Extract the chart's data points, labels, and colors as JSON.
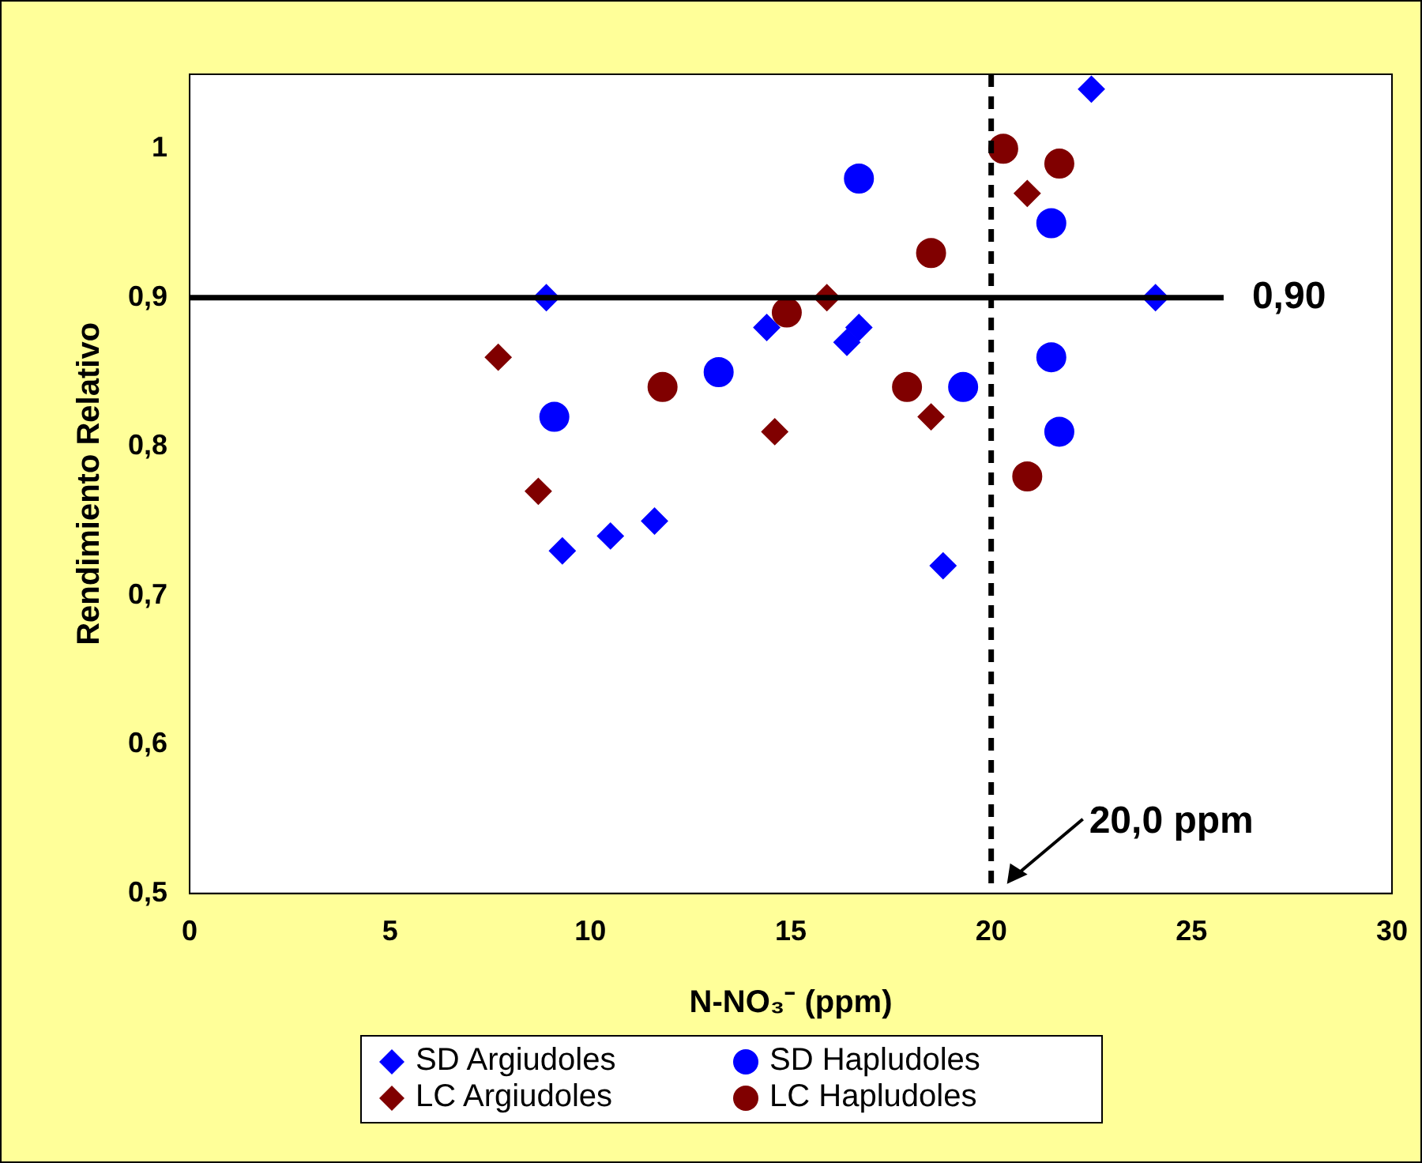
{
  "chart_data": {
    "type": "scatter",
    "xlabel": "N-NO₃⁻ (ppm)",
    "ylabel": "Rendimiento Relativo",
    "xlim": [
      0,
      30
    ],
    "xticks": [
      0,
      5,
      10,
      15,
      20,
      25,
      30
    ],
    "ylim": [
      0.5,
      1.05
    ],
    "yticks": [
      {
        "value": 0.5,
        "label": "0,5"
      },
      {
        "value": 0.6,
        "label": "0,6"
      },
      {
        "value": 0.7,
        "label": "0,7"
      },
      {
        "value": 0.8,
        "label": "0,8"
      },
      {
        "value": 0.9,
        "label": "0,9"
      },
      {
        "value": 1,
        "label": "1"
      }
    ],
    "grid": false,
    "legend": "bottom",
    "series": [
      {
        "name": "SD Argiudoles",
        "color": "#0000ff",
        "marker": "diamond",
        "x": [
          8.9,
          9.3,
          10.5,
          11.6,
          14.4,
          16.4,
          16.7,
          18.8,
          22.5,
          24.1
        ],
        "values": [
          0.9,
          0.73,
          0.74,
          0.75,
          0.88,
          0.87,
          0.88,
          0.72,
          1.04,
          0.9
        ]
      },
      {
        "name": "SD Hapludoles",
        "color": "#0000ff",
        "marker": "circle",
        "x": [
          9.1,
          13.2,
          16.7,
          19.3,
          21.5,
          21.5,
          21.7
        ],
        "values": [
          0.82,
          0.85,
          0.98,
          0.84,
          0.95,
          0.86,
          0.81
        ]
      },
      {
        "name": "LC Argiudoles",
        "color": "#800000",
        "marker": "diamond",
        "x": [
          7.7,
          8.7,
          14.6,
          15.9,
          18.5,
          20.9
        ],
        "values": [
          0.86,
          0.77,
          0.81,
          0.9,
          0.82,
          0.97
        ]
      },
      {
        "name": "LC Hapludoles",
        "color": "#800000",
        "marker": "circle",
        "x": [
          11.8,
          14.9,
          18.5,
          17.9,
          20.3,
          21.7,
          20.9
        ],
        "values": [
          0.84,
          0.89,
          0.93,
          0.84,
          1.0,
          0.99,
          0.78
        ]
      }
    ],
    "ref_lines": [
      {
        "axis": "y",
        "value": 0.9,
        "label": "0,90",
        "color": "#000000",
        "line_style": "solid"
      },
      {
        "axis": "x",
        "value": 20,
        "label": "20,0 ppm",
        "color": "#000000",
        "line_style": "dashed"
      }
    ]
  }
}
